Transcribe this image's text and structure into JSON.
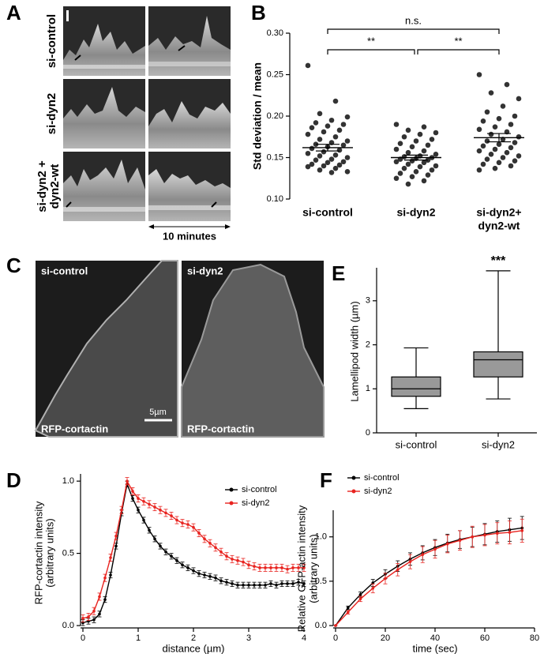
{
  "panel_labels": [
    "A",
    "B",
    "C",
    "D",
    "E",
    "F"
  ],
  "kymographs": {
    "rows": [
      [
        "si-control"
      ],
      [
        "si-dyn2"
      ],
      [
        "si-dyn2 +",
        "dyn2-wt"
      ]
    ],
    "time_label": "10 minutes"
  },
  "micrographs": {
    "panels": [
      {
        "condition": "si-control",
        "stain": "RFP-cortactin"
      },
      {
        "condition": "si-dyn2",
        "stain": "RFP-cortactin"
      }
    ],
    "scale_bar": "5µm"
  },
  "chart_data": [
    {
      "type": "strip",
      "ylabel": [
        "Std deviation / mean"
      ],
      "categories": [
        [
          "si-control"
        ],
        [
          "si-dyn2"
        ],
        [
          "si-dyn2+",
          "dyn2-wt"
        ]
      ],
      "values": [
        [
          0.261,
          0.218,
          0.203,
          0.199,
          0.195,
          0.192,
          0.19,
          0.188,
          0.186,
          0.183,
          0.181,
          0.178,
          0.175,
          0.172,
          0.17,
          0.168,
          0.166,
          0.165,
          0.163,
          0.161,
          0.159,
          0.157,
          0.155,
          0.153,
          0.152,
          0.15,
          0.148,
          0.147,
          0.145,
          0.144,
          0.142,
          0.141,
          0.14,
          0.139,
          0.137,
          0.135,
          0.133,
          0.132
        ],
        [
          0.19,
          0.187,
          0.183,
          0.18,
          0.178,
          0.175,
          0.172,
          0.17,
          0.167,
          0.165,
          0.163,
          0.16,
          0.158,
          0.156,
          0.154,
          0.152,
          0.151,
          0.15,
          0.149,
          0.148,
          0.147,
          0.146,
          0.145,
          0.144,
          0.142,
          0.14,
          0.139,
          0.137,
          0.135,
          0.133,
          0.131,
          0.129,
          0.127,
          0.125,
          0.122,
          0.118
        ],
        [
          0.25,
          0.238,
          0.228,
          0.221,
          0.212,
          0.205,
          0.2,
          0.197,
          0.194,
          0.19,
          0.187,
          0.184,
          0.181,
          0.178,
          0.175,
          0.172,
          0.17,
          0.168,
          0.166,
          0.164,
          0.162,
          0.16,
          0.158,
          0.156,
          0.154,
          0.152,
          0.15,
          0.148,
          0.146,
          0.144,
          0.142,
          0.14,
          0.137,
          0.135
        ]
      ],
      "means": [
        0.162,
        0.15,
        0.174
      ],
      "sems": [
        0.004,
        0.003,
        0.005
      ],
      "color": "#333333",
      "significance": [
        "n.s.",
        "**",
        "**"
      ],
      "ylim": [
        0.1,
        0.3
      ],
      "yticks": [
        {
          "value": 0.1,
          "label": "0.10"
        },
        {
          "value": 0.15,
          "label": "0.15"
        },
        {
          "value": 0.2,
          "label": "0.20"
        },
        {
          "value": 0.25,
          "label": "0.25"
        },
        {
          "value": 0.3,
          "label": "0.30"
        }
      ]
    },
    {
      "type": "box",
      "ylabel": [
        "Lamellipod width (µm)"
      ],
      "categories": [
        [
          "si-control"
        ],
        [
          "si-dyn2"
        ]
      ],
      "boxes": [
        {
          "min": 0.55,
          "q1": 0.83,
          "median": 1.0,
          "q3": 1.27,
          "max": 1.93
        },
        {
          "min": 0.77,
          "q1": 1.27,
          "median": 1.66,
          "q3": 1.84,
          "max": 3.68
        }
      ],
      "color": "#999999",
      "annotations": [
        "***"
      ],
      "ylim": [
        0,
        3.75
      ],
      "yticks": [
        0,
        1,
        2,
        3
      ]
    },
    {
      "type": "line",
      "ylabel": [
        "RFP-cortactin intensity",
        "(arbitrary units)"
      ],
      "xlabel": "distance (µm)",
      "x": [
        0,
        0.1,
        0.2,
        0.3,
        0.4,
        0.5,
        0.6,
        0.7,
        0.8,
        0.9,
        1.0,
        1.1,
        1.2,
        1.3,
        1.4,
        1.5,
        1.6,
        1.7,
        1.8,
        1.9,
        2.0,
        2.1,
        2.2,
        2.3,
        2.4,
        2.5,
        2.6,
        2.7,
        2.8,
        2.9,
        3.0,
        3.1,
        3.2,
        3.3,
        3.4,
        3.5,
        3.6,
        3.7,
        3.8,
        3.9,
        4.0
      ],
      "series": [
        {
          "name": "si-control",
          "color": "#000000",
          "error": 0.02,
          "values": [
            0.02,
            0.03,
            0.04,
            0.08,
            0.18,
            0.35,
            0.55,
            0.78,
            0.98,
            0.88,
            0.8,
            0.73,
            0.66,
            0.6,
            0.55,
            0.51,
            0.48,
            0.45,
            0.42,
            0.4,
            0.38,
            0.36,
            0.35,
            0.34,
            0.33,
            0.31,
            0.3,
            0.29,
            0.28,
            0.28,
            0.28,
            0.28,
            0.28,
            0.28,
            0.29,
            0.28,
            0.29,
            0.29,
            0.29,
            0.3,
            0.29
          ]
        },
        {
          "name": "si-dyn2",
          "color": "#e8231f",
          "error": 0.025,
          "values": [
            0.05,
            0.06,
            0.1,
            0.2,
            0.33,
            0.47,
            0.62,
            0.8,
            1.0,
            0.93,
            0.88,
            0.86,
            0.84,
            0.82,
            0.8,
            0.78,
            0.76,
            0.73,
            0.71,
            0.7,
            0.68,
            0.64,
            0.6,
            0.57,
            0.54,
            0.51,
            0.48,
            0.46,
            0.45,
            0.44,
            0.42,
            0.41,
            0.4,
            0.4,
            0.4,
            0.4,
            0.4,
            0.39,
            0.4,
            0.4,
            0.4
          ]
        }
      ],
      "legend": "upper right",
      "xlim": [
        0,
        4
      ],
      "xticks": [
        0,
        1,
        2,
        3,
        4
      ],
      "ylim": [
        0,
        1.05
      ],
      "yticks": [
        {
          "value": 0,
          "label": "0.0"
        },
        {
          "value": 0.5,
          "label": "0.5"
        },
        {
          "value": 1,
          "label": "1.0"
        }
      ]
    },
    {
      "type": "line",
      "ylabel": [
        "Relative GFP-actin intensity",
        "(arbitrary units)"
      ],
      "xlabel": "time (sec)",
      "x": [
        0,
        5,
        10,
        15,
        20,
        25,
        30,
        35,
        40,
        45,
        50,
        55,
        60,
        65,
        70,
        75
      ],
      "series": [
        {
          "name": "si-control",
          "color": "#000000",
          "values": [
            0,
            0.2,
            0.35,
            0.48,
            0.58,
            0.67,
            0.75,
            0.82,
            0.88,
            0.93,
            0.97,
            1.0,
            1.03,
            1.06,
            1.08,
            1.1
          ],
          "errors": [
            0,
            0.02,
            0.03,
            0.04,
            0.05,
            0.06,
            0.07,
            0.08,
            0.09,
            0.1,
            0.1,
            0.11,
            0.12,
            0.12,
            0.13,
            0.13
          ]
        },
        {
          "name": "si-dyn2",
          "color": "#e8231f",
          "values": [
            0,
            0.15,
            0.3,
            0.42,
            0.53,
            0.63,
            0.72,
            0.8,
            0.86,
            0.92,
            0.96,
            1.0,
            1.02,
            1.04,
            1.05,
            1.07
          ],
          "errors": [
            0,
            0.02,
            0.03,
            0.05,
            0.06,
            0.07,
            0.08,
            0.09,
            0.1,
            0.1,
            0.11,
            0.12,
            0.12,
            0.12,
            0.13,
            0.13
          ]
        }
      ],
      "legend": "upper left",
      "xlim": [
        0,
        80
      ],
      "xticks": [
        0,
        20,
        40,
        60,
        80
      ],
      "ylim": [
        0,
        1.3
      ],
      "yticks": [
        {
          "value": 0,
          "label": "0.0"
        },
        {
          "value": 0.5,
          "label": "0.5"
        },
        {
          "value": 1,
          "label": "1.0"
        }
      ]
    }
  ]
}
